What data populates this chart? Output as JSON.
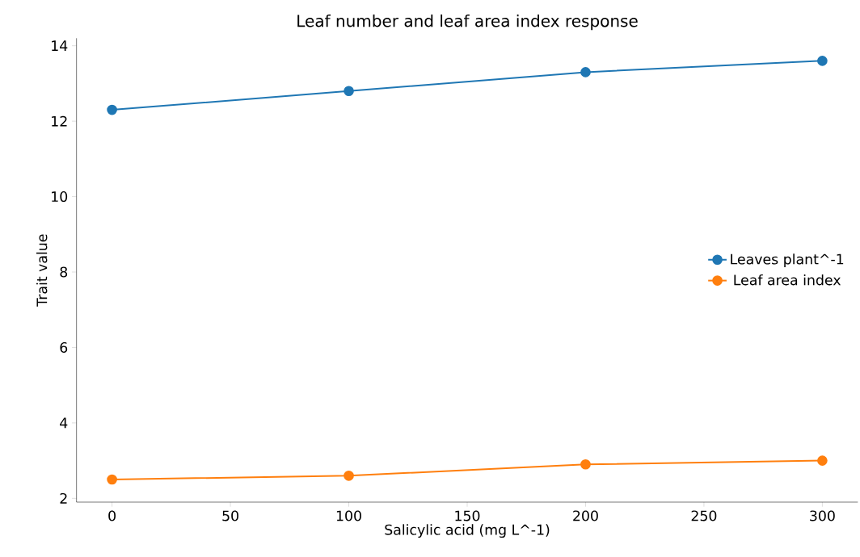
{
  "chart_data": {
    "type": "line",
    "title": "Leaf number and leaf area index response",
    "xlabel": "Salicylic acid (mg L^-1)",
    "ylabel": "Trait value",
    "x": [
      0,
      100,
      200,
      300
    ],
    "series": [
      {
        "name": "Leaves plant^-1",
        "color": "#1f77b4",
        "values": [
          12.3,
          12.8,
          13.3,
          13.6
        ]
      },
      {
        "name": "Leaf area index",
        "color": "#ff7f0e",
        "values": [
          2.5,
          2.6,
          2.9,
          3.0
        ]
      }
    ],
    "xlim": [
      -15,
      315
    ],
    "ylim": [
      1.9,
      14.2
    ],
    "xticks": [
      0,
      50,
      100,
      150,
      200,
      250,
      300
    ],
    "yticks": [
      2,
      4,
      6,
      8,
      10,
      12,
      14
    ],
    "legend": "right",
    "marker": "circle",
    "line_style": "solid",
    "grid": false
  }
}
